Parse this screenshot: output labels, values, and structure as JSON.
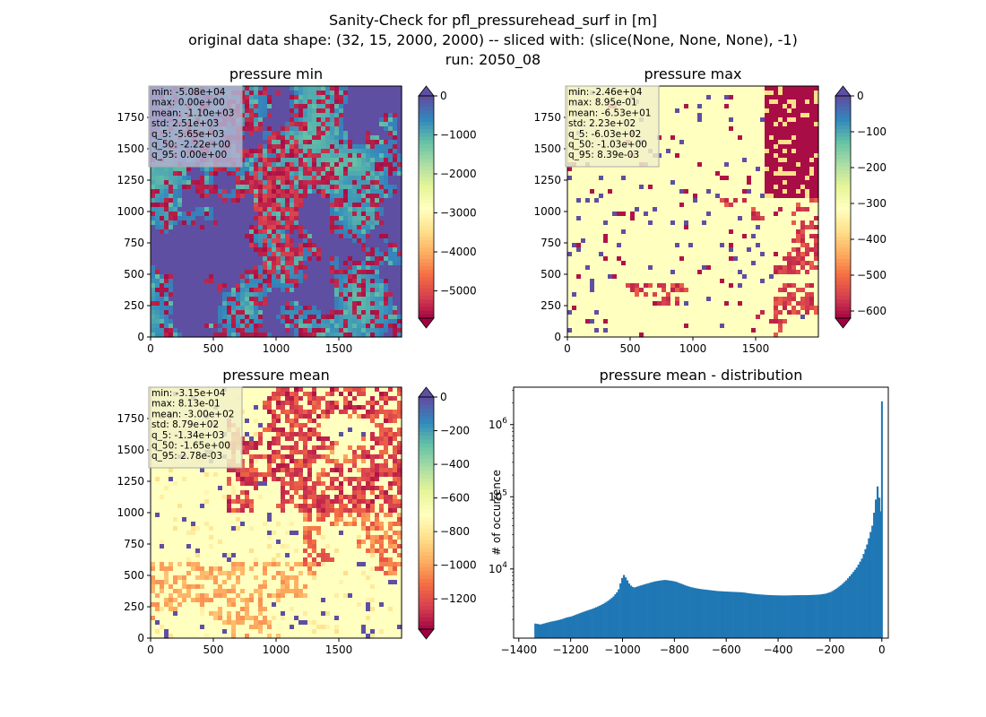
{
  "figure": {
    "title_lines": [
      "Sanity-Check for pfl_pressurehead_surf in [m]",
      "original data shape: (32, 15, 2000, 2000) -- sliced with: (slice(None, None, None), -1)",
      "run: 2050_08"
    ]
  },
  "chart_data": [
    {
      "type": "heatmap",
      "title": "pressure min",
      "xlim": [
        0,
        2000
      ],
      "ylim": [
        0,
        2000
      ],
      "x_ticks": [
        0,
        500,
        1000,
        1500
      ],
      "y_ticks": [
        0,
        250,
        500,
        750,
        1000,
        1250,
        1500,
        1750
      ],
      "colorbar": {
        "cmap": "Spectral",
        "vmin": -5700,
        "vmax": 0,
        "ticks": [
          0,
          -1000,
          -2000,
          -3000,
          -4000,
          -5000
        ],
        "tick_labels": [
          "0",
          "−1000",
          "−2000",
          "−3000",
          "−4000",
          "−5000"
        ],
        "extend": "both"
      },
      "stats": [
        "min: -5.08e+04",
        "max: 0.00e+00",
        "mean: -1.10e+03",
        "std: 2.51e+03",
        "q_5: -5.65e+03",
        "q_50: -2.22e+00",
        "q_95: 0.00e+00"
      ],
      "stats_box_color": "#b0b0cf"
    },
    {
      "type": "heatmap",
      "title": "pressure max",
      "xlim": [
        0,
        2000
      ],
      "ylim": [
        0,
        2000
      ],
      "x_ticks": [
        0,
        500,
        1000,
        1500
      ],
      "y_ticks": [
        0,
        250,
        500,
        750,
        1000,
        1250,
        1500,
        1750
      ],
      "colorbar": {
        "cmap": "Spectral",
        "vmin": -620,
        "vmax": 0,
        "ticks": [
          0,
          -100,
          -200,
          -300,
          -400,
          -500,
          -600
        ],
        "tick_labels": [
          "0",
          "−100",
          "−200",
          "−300",
          "−400",
          "−500",
          "−600"
        ],
        "extend": "both"
      },
      "stats": [
        "min: -2.46e+04",
        "max: 8.95e-01",
        "mean: -6.53e+01",
        "std: 2.23e+02",
        "q_5: -6.03e+02",
        "q_50: -1.03e+00",
        "q_95: 8.39e-03"
      ],
      "stats_box_color": "#f2f1c8"
    },
    {
      "type": "heatmap",
      "title": "pressure mean",
      "xlim": [
        0,
        2000
      ],
      "ylim": [
        0,
        2000
      ],
      "x_ticks": [
        0,
        500,
        1000,
        1500
      ],
      "y_ticks": [
        0,
        250,
        500,
        750,
        1000,
        1250,
        1500,
        1750
      ],
      "colorbar": {
        "cmap": "Spectral",
        "vmin": -1380,
        "vmax": 0,
        "ticks": [
          0,
          -200,
          -400,
          -600,
          -800,
          -1000,
          -1200
        ],
        "tick_labels": [
          "0",
          "−200",
          "−400",
          "−600",
          "−800",
          "−1000",
          "−1200"
        ],
        "extend": "both"
      },
      "stats": [
        "min: -3.15e+04",
        "max: 8.13e-01",
        "mean: -3.00e+02",
        "std: 8.79e+02",
        "q_5: -1.34e+03",
        "q_50: -1.65e+00",
        "q_95: 2.78e-03"
      ],
      "stats_box_color": "#f2f1c8"
    },
    {
      "type": "bar",
      "title": "pressure mean - distribution",
      "ylabel": "# of occurrence",
      "y_scale": "log",
      "xlim": [
        -1420,
        25
      ],
      "ylim": [
        1100,
        3300000
      ],
      "x_ticks": [
        -1400,
        -1200,
        -1000,
        -800,
        -600,
        -400,
        -200,
        0
      ],
      "x_tick_labels": [
        "−1400",
        "−1200",
        "−1000",
        "−800",
        "−600",
        "−400",
        "−200",
        "0"
      ],
      "y_ticks": [
        10000,
        100000,
        1000000
      ],
      "y_tick_labels": [
        "10^4",
        "10^5",
        "10^6"
      ],
      "bar_color": "#1f77b4",
      "bin_width": 6.7,
      "bins": [
        [
          -1340,
          1750
        ],
        [
          -1320,
          1700
        ],
        [
          -1300,
          1780
        ],
        [
          -1280,
          1860
        ],
        [
          -1260,
          1920
        ],
        [
          -1240,
          2000
        ],
        [
          -1220,
          2120
        ],
        [
          -1200,
          2200
        ],
        [
          -1180,
          2350
        ],
        [
          -1160,
          2500
        ],
        [
          -1140,
          2650
        ],
        [
          -1120,
          2800
        ],
        [
          -1100,
          3000
        ],
        [
          -1080,
          3250
        ],
        [
          -1060,
          3600
        ],
        [
          -1040,
          4100
        ],
        [
          -1020,
          5000
        ],
        [
          -1008,
          7000
        ],
        [
          -1000,
          8400
        ],
        [
          -990,
          7500
        ],
        [
          -975,
          6000
        ],
        [
          -960,
          5500
        ],
        [
          -940,
          5800
        ],
        [
          -920,
          6100
        ],
        [
          -900,
          6400
        ],
        [
          -880,
          6700
        ],
        [
          -860,
          6900
        ],
        [
          -840,
          7050
        ],
        [
          -820,
          6900
        ],
        [
          -800,
          6700
        ],
        [
          -780,
          6300
        ],
        [
          -760,
          5900
        ],
        [
          -740,
          5600
        ],
        [
          -720,
          5400
        ],
        [
          -700,
          5250
        ],
        [
          -680,
          5150
        ],
        [
          -660,
          5050
        ],
        [
          -640,
          4950
        ],
        [
          -620,
          4900
        ],
        [
          -600,
          4850
        ],
        [
          -580,
          4820
        ],
        [
          -560,
          4780
        ],
        [
          -540,
          4740
        ],
        [
          -520,
          4620
        ],
        [
          -500,
          4520
        ],
        [
          -480,
          4450
        ],
        [
          -460,
          4400
        ],
        [
          -440,
          4350
        ],
        [
          -420,
          4320
        ],
        [
          -400,
          4300
        ],
        [
          -380,
          4290
        ],
        [
          -360,
          4300
        ],
        [
          -340,
          4320
        ],
        [
          -320,
          4330
        ],
        [
          -300,
          4330
        ],
        [
          -280,
          4350
        ],
        [
          -260,
          4380
        ],
        [
          -240,
          4430
        ],
        [
          -220,
          4550
        ],
        [
          -200,
          4800
        ],
        [
          -180,
          5300
        ],
        [
          -160,
          6000
        ],
        [
          -140,
          7000
        ],
        [
          -120,
          8500
        ],
        [
          -100,
          10500
        ],
        [
          -80,
          14000
        ],
        [
          -60,
          22000
        ],
        [
          -40,
          40000
        ],
        [
          -30,
          75000
        ],
        [
          -20,
          140000
        ],
        [
          -12,
          90000
        ],
        [
          -6,
          60000
        ],
        [
          -3,
          2100000
        ]
      ]
    }
  ]
}
